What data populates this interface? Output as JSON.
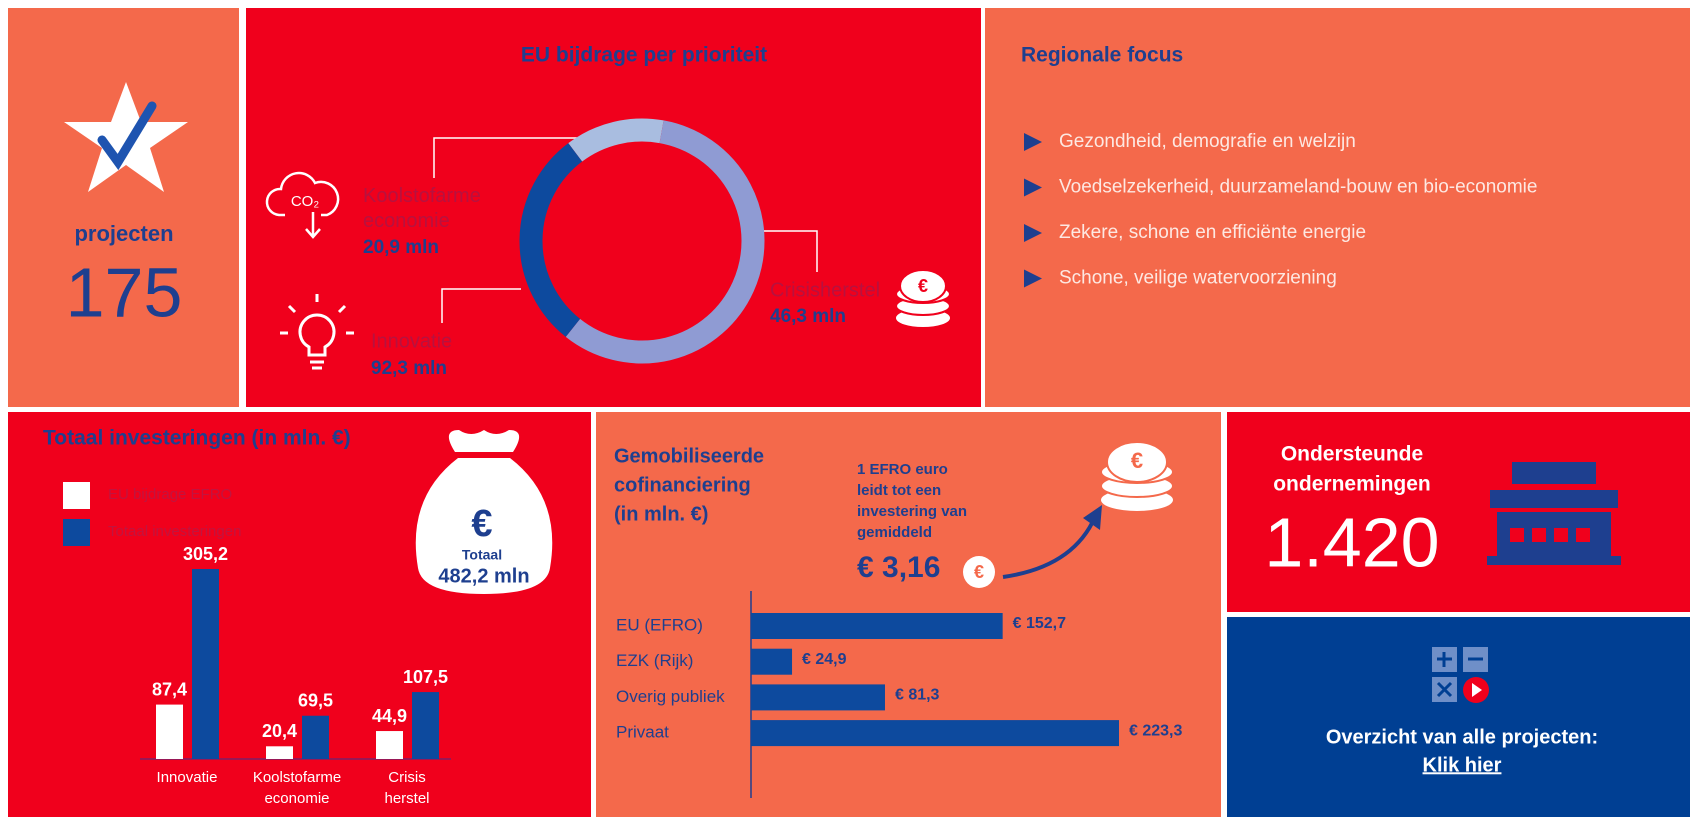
{
  "projects": {
    "label": "projecten",
    "value": "175"
  },
  "focus": {
    "title": "Regionale focus",
    "items": [
      "Gezondheid, demografie en welzijn",
      "Voedselzekerheid, duurzameland-bouw en bio-economie",
      "Zekere, schone en efficiënte energie",
      "Schone, veilige watervoorziening"
    ]
  },
  "total": {
    "symbol": "€",
    "label": "Totaal",
    "value": "482,2 mln"
  },
  "cofinance": {
    "title": [
      "Gemobiliseerde",
      "cofinanciering",
      "(in mln. €)"
    ],
    "note": [
      "1 EFRO euro",
      "leidt tot een",
      "investering van",
      "gemiddeld"
    ],
    "average": "€ 3,16"
  },
  "companies": {
    "title": [
      "Ondersteunde",
      "ondernemingen"
    ],
    "value": "1.420"
  },
  "overview": {
    "text": "Overzicht van alle projecten:",
    "link": "Klik hier"
  },
  "chart_data": [
    {
      "type": "donut",
      "title": "EU bijdrage per prioriteit",
      "categories": [
        "Koolstofarme economie",
        "Innovatie",
        "Crisisherstel"
      ],
      "values": [
        20.9,
        92.3,
        46.3
      ],
      "value_labels": [
        "20,9 mln",
        "92,3 mln",
        "46,3 mln"
      ],
      "colors": [
        "#a9bde0",
        "#8f9bd3",
        "#0d4a9e"
      ]
    },
    {
      "type": "bar",
      "title": "Totaal investeringen (in mln. €)",
      "categories": [
        "Innovatie",
        "Koolstofarme economie",
        "Crisis herstel"
      ],
      "series": [
        {
          "name": "EU bijdrage EFRO",
          "color": "#ffffff",
          "values": [
            87.4,
            20.4,
            44.9
          ],
          "value_labels": [
            "87,4",
            "20,4",
            "44,9"
          ]
        },
        {
          "name": "Totaal investeringen",
          "color": "#0d4a9e",
          "values": [
            305.2,
            69.5,
            107.5
          ],
          "value_labels": [
            "305,2",
            "69,5",
            "107,5"
          ]
        }
      ]
    },
    {
      "type": "hbar",
      "categories": [
        "EU (EFRO)",
        "EZK (Rijk)",
        "Overig publiek",
        "Privaat"
      ],
      "values": [
        152.7,
        24.9,
        81.3,
        223.3
      ],
      "value_labels": [
        "€ 152,7",
        "€ 24,9",
        "€ 81,3",
        "€ 223,3"
      ],
      "color": "#0d4a9e"
    }
  ]
}
